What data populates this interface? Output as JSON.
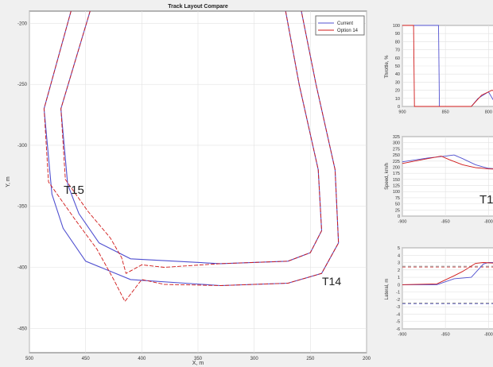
{
  "main_plot": {
    "title": "Track Layout Compare",
    "xlabel": "X, m",
    "ylabel": "Y, m",
    "legend": [
      {
        "name": "Current",
        "color": "#5050d0"
      },
      {
        "name": "Option 14",
        "color": "#d01818"
      }
    ],
    "corner_labels": [
      "T15",
      "T14"
    ]
  },
  "right_panels": {
    "throttle": {
      "ylabel": "Throttle, %",
      "label": ""
    },
    "speed": {
      "ylabel": "Speed, km/h",
      "label": "T1"
    },
    "lateral": {
      "ylabel": "Lateral, m",
      "label": ""
    }
  },
  "chart_data": [
    {
      "type": "line",
      "title": "Track Layout Compare",
      "xlabel": "X, m",
      "ylabel": "Y, m",
      "xlim": [
        500,
        200
      ],
      "ylim": [
        -470,
        -190
      ],
      "x_ticks": [
        "500",
        "450",
        "400",
        "350",
        "300",
        "250",
        "200"
      ],
      "y_ticks": [
        "-200",
        "-250",
        "-300",
        "-350",
        "-400",
        "-450"
      ],
      "series": [
        {
          "name": "Current",
          "color": "#5050d0",
          "outer": [
            [
              463,
              -190
            ],
            [
              487,
              -270
            ],
            [
              480,
              -340
            ],
            [
              470,
              -368
            ],
            [
              450,
              -395
            ],
            [
              410,
              -410
            ],
            [
              330,
              -415
            ],
            [
              270,
              -413
            ],
            [
              240,
              -405
            ],
            [
              225,
              -380
            ],
            [
              228,
              -320
            ],
            [
              245,
              -250
            ],
            [
              258,
              -190
            ]
          ],
          "inner": [
            [
              446,
              -190
            ],
            [
              472,
              -270
            ],
            [
              466,
              -332
            ],
            [
              456,
              -356
            ],
            [
              438,
              -380
            ],
            [
              410,
              -393
            ],
            [
              330,
              -397
            ],
            [
              270,
              -395
            ],
            [
              250,
              -388
            ],
            [
              240,
              -370
            ],
            [
              243,
              -320
            ],
            [
              260,
              -250
            ],
            [
              272,
              -190
            ]
          ]
        },
        {
          "name": "Option 14",
          "color": "#d01818",
          "outer": [
            [
              463,
              -190
            ],
            [
              487,
              -270
            ],
            [
              483,
              -330
            ],
            [
              460,
              -360
            ],
            [
              440,
              -385
            ],
            [
              425,
              -410
            ],
            [
              415,
              -428
            ],
            [
              400,
              -410
            ],
            [
              380,
              -414
            ],
            [
              330,
              -415
            ],
            [
              270,
              -413
            ],
            [
              240,
              -405
            ],
            [
              225,
              -380
            ],
            [
              228,
              -320
            ],
            [
              245,
              -250
            ],
            [
              258,
              -190
            ]
          ],
          "inner": [
            [
              446,
              -190
            ],
            [
              472,
              -270
            ],
            [
              468,
              -328
            ],
            [
              448,
              -354
            ],
            [
              428,
              -376
            ],
            [
              418,
              -392
            ],
            [
              414,
              -405
            ],
            [
              400,
              -398
            ],
            [
              380,
              -400
            ],
            [
              330,
              -397
            ],
            [
              270,
              -395
            ],
            [
              250,
              -388
            ],
            [
              240,
              -370
            ],
            [
              243,
              -320
            ],
            [
              260,
              -250
            ],
            [
              272,
              -190
            ]
          ]
        }
      ]
    },
    {
      "type": "line",
      "ylabel": "Throttle, %",
      "xlim": [
        900,
        780
      ],
      "ylim": [
        0,
        100
      ],
      "y_ticks": [
        "100",
        "90",
        "80",
        "70",
        "60",
        "50",
        "40",
        "30",
        "20",
        "10",
        "0"
      ],
      "x_ticks": [
        "900",
        "850",
        "800"
      ],
      "series": [
        {
          "name": "Current",
          "color": "#5050d0",
          "values": [
            [
              900,
              100
            ],
            [
              858,
              100
            ],
            [
              857,
              0
            ],
            [
              820,
              0
            ],
            [
              812,
              10
            ],
            [
              800,
              18
            ],
            [
              790,
              0
            ]
          ]
        },
        {
          "name": "Option 14",
          "color": "#d01818",
          "values": [
            [
              900,
              100
            ],
            [
              887,
              100
            ],
            [
              886,
              0
            ],
            [
              820,
              0
            ],
            [
              808,
              14
            ],
            [
              796,
              20
            ],
            [
              785,
              15
            ]
          ]
        }
      ]
    },
    {
      "type": "line",
      "ylabel": "Speed, km/h",
      "xlim": [
        -900,
        -780
      ],
      "ylim": [
        0,
        325
      ],
      "y_ticks": [
        "325",
        "300",
        "275",
        "250",
        "225",
        "200",
        "175",
        "150",
        "125",
        "100",
        "75",
        "50",
        "25",
        "0"
      ],
      "x_ticks": [
        "-900",
        "-850",
        "-800"
      ],
      "series": [
        {
          "name": "Current",
          "color": "#5050d0",
          "values": [
            [
              -900,
              222
            ],
            [
              -870,
              238
            ],
            [
              -850,
              245
            ],
            [
              -840,
              250
            ],
            [
              -830,
              235
            ],
            [
              -815,
              210
            ],
            [
              -800,
              195
            ],
            [
              -790,
              193
            ],
            [
              -780,
              200
            ]
          ]
        },
        {
          "name": "Option 14",
          "color": "#d01818",
          "values": [
            [
              -900,
              215
            ],
            [
              -875,
              232
            ],
            [
              -855,
              245
            ],
            [
              -845,
              230
            ],
            [
              -830,
              210
            ],
            [
              -815,
              198
            ],
            [
              -800,
              193
            ],
            [
              -790,
              192
            ],
            [
              -780,
              198
            ]
          ]
        }
      ]
    },
    {
      "type": "line",
      "ylabel": "Lateral, m",
      "xlim": [
        -900,
        -780
      ],
      "ylim": [
        -6,
        5
      ],
      "y_ticks": [
        "5",
        "4",
        "3",
        "2",
        "1",
        "0",
        "-1",
        "-2",
        "-3",
        "-4",
        "-5",
        "-6"
      ],
      "x_ticks": [
        "-900",
        "-850",
        "-800"
      ],
      "series": [
        {
          "name": "Current",
          "color": "#5050d0",
          "values": [
            [
              -900,
              0
            ],
            [
              -860,
              0
            ],
            [
              -840,
              0.8
            ],
            [
              -820,
              1.0
            ],
            [
              -806,
              2.8
            ],
            [
              -800,
              3.0
            ],
            [
              -790,
              3.0
            ],
            [
              -780,
              2.9
            ]
          ]
        },
        {
          "name": "Option 14",
          "color": "#d01818",
          "values": [
            [
              -900,
              0
            ],
            [
              -860,
              0.1
            ],
            [
              -840,
              1.2
            ],
            [
              -830,
              1.8
            ],
            [
              -815,
              2.9
            ],
            [
              -806,
              3.0
            ],
            [
              -790,
              2.9
            ],
            [
              -780,
              2.8
            ]
          ]
        }
      ]
    }
  ]
}
